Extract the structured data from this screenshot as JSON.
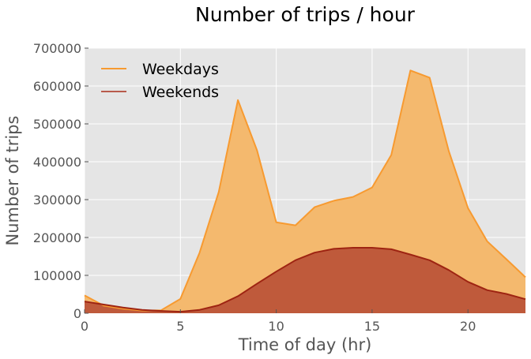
{
  "chart_data": {
    "type": "area",
    "title": "Number of trips / hour",
    "xlabel": "Time of day (hr)",
    "ylabel": "Number of trips",
    "xlim": [
      0,
      23
    ],
    "ylim": [
      0,
      700000
    ],
    "xticks": [
      0,
      5,
      10,
      15,
      20
    ],
    "yticks": [
      0,
      100000,
      200000,
      300000,
      400000,
      500000,
      600000,
      700000
    ],
    "grid": true,
    "legend_position": "top-left",
    "x": [
      0,
      1,
      2,
      3,
      4,
      5,
      6,
      7,
      8,
      9,
      10,
      11,
      12,
      13,
      14,
      15,
      16,
      17,
      18,
      19,
      20,
      21,
      22,
      23
    ],
    "series": [
      {
        "name": "Weekdays",
        "line_color": "#f79a30",
        "fill_color": "#f4b96e",
        "values": [
          47000,
          20000,
          12000,
          7000,
          8000,
          38000,
          160000,
          320000,
          563000,
          430000,
          240000,
          232000,
          280000,
          297000,
          307000,
          332000,
          418000,
          641000,
          622000,
          428000,
          278000,
          190000,
          143000,
          95000
        ]
      },
      {
        "name": "Weekends",
        "line_color": "#9e2412",
        "fill_color": "#bf5a3b",
        "values": [
          31000,
          23000,
          15000,
          9000,
          6000,
          4000,
          9000,
          21000,
          45000,
          78000,
          110000,
          140000,
          160000,
          170000,
          173000,
          173000,
          169000,
          155000,
          140000,
          114000,
          83000,
          61000,
          51000,
          37000
        ]
      }
    ]
  }
}
